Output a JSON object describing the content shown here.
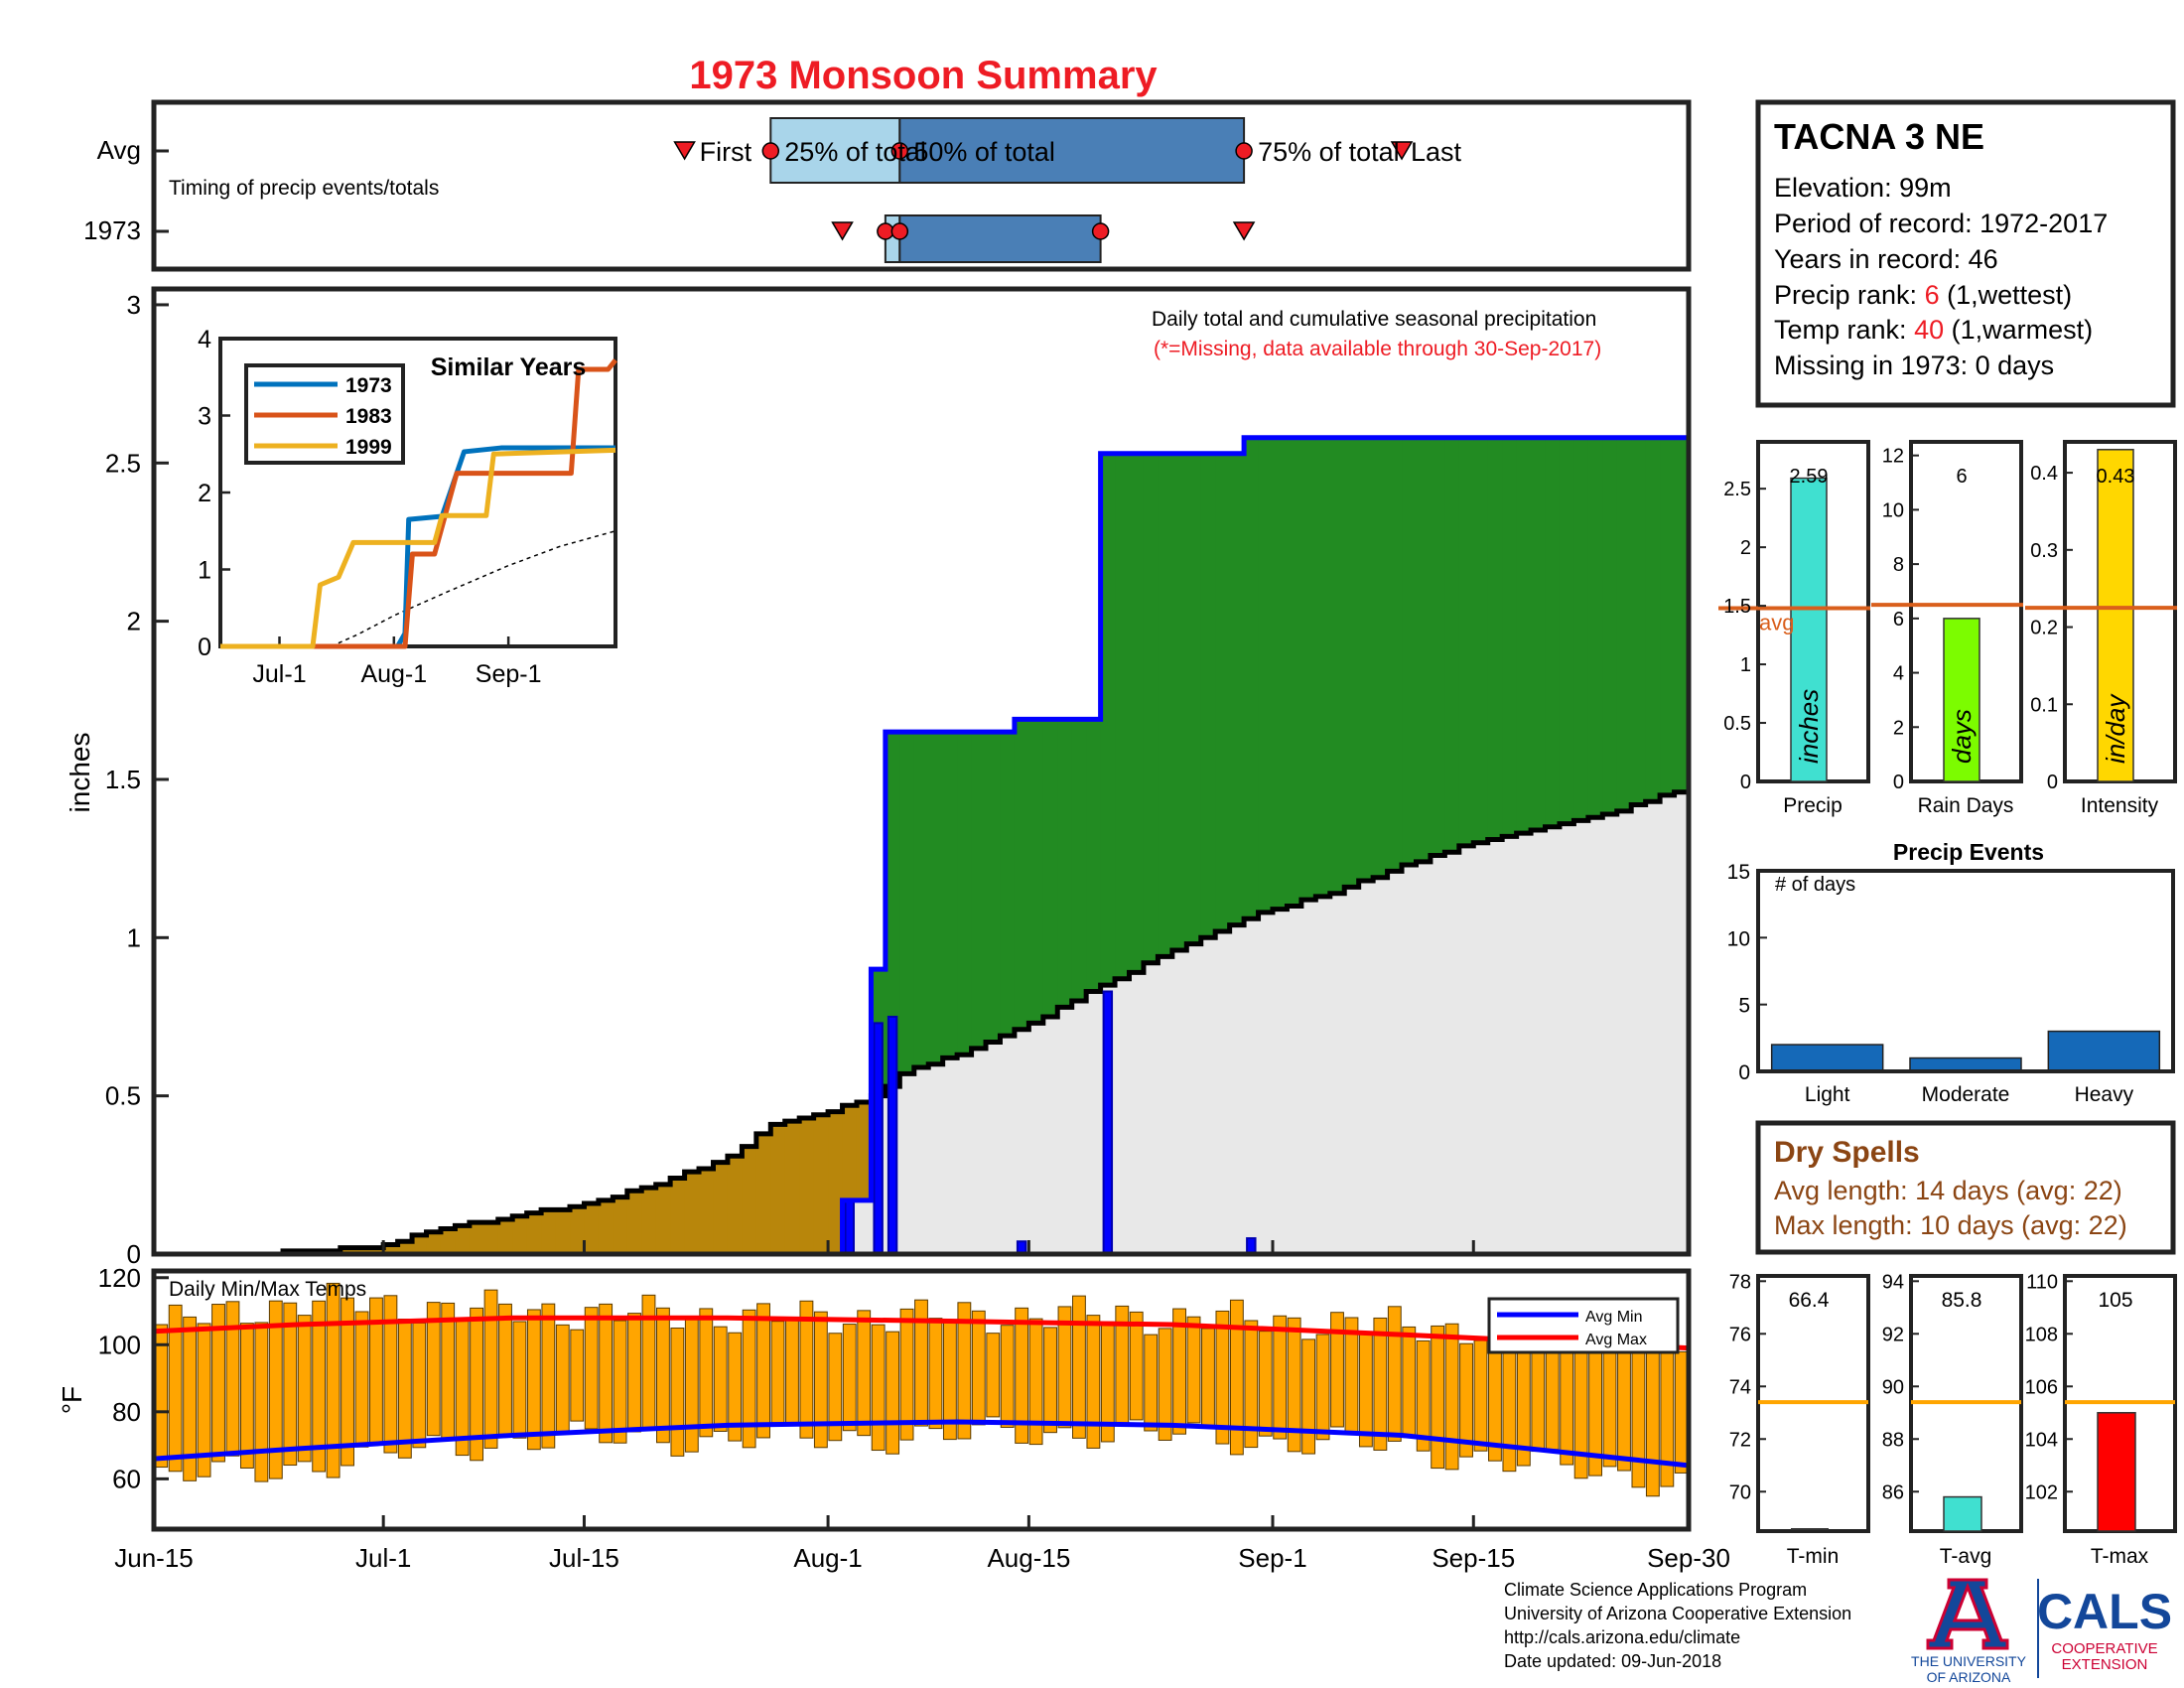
{
  "title": "1973 Monsoon Summary",
  "colors": {
    "title_red": "#ee1c24",
    "light_blue": "#a9d5ea",
    "mid_blue": "#4a7fb6",
    "precip_blue": "#0000ff",
    "green": "#228b22",
    "brown": "#b8860b",
    "light_gray": "#e8e8e8",
    "orange": "#ffa500",
    "avg_orange": "#d95f1c",
    "rank_red": "#ee1c24",
    "dry_spell_brown": "#8b4513",
    "turquoise": "#40e0d0",
    "lime": "#7cfc00",
    "gold": "#ffd700",
    "heavy_blue": "#1569b8",
    "cals_blue": "#13479a",
    "ua_red": "#cc0033"
  },
  "timing": {
    "row_labels": [
      "Avg",
      "1973"
    ],
    "caption": "Timing of precip events/totals",
    "avg_labels": {
      "first": "First",
      "p25": "25% of total",
      "p50": "50% of total",
      "p75": "75% of total",
      "last": "Last"
    },
    "avg": {
      "first": "2017-07-22",
      "p25": "2017-07-28",
      "p50": "2017-08-06",
      "p75": "2017-08-30",
      "last": "2017-09-10"
    },
    "year": {
      "first": "2017-08-02",
      "p25": "2017-08-05",
      "p50": "2017-08-06",
      "p75": "2017-08-20",
      "last": "2017-08-30"
    }
  },
  "main_chart": {
    "ylabel": "inches",
    "note": "Daily total and cumulative seasonal precipitation",
    "missing_note": "(*=Missing, data available through 30-Sep-2017)",
    "ylim": [
      0,
      3.05
    ],
    "yticks": [
      "0",
      "0.5",
      "1",
      "1.5",
      "2",
      "2.5",
      "3"
    ],
    "xticks": [
      "Jun-15",
      "Jul-1",
      "Jul-15",
      "Aug-1",
      "Aug-15",
      "Sep-1",
      "Sep-15",
      "Sep-30"
    ],
    "cumulative_year": [
      [
        "2017-06-15",
        0
      ],
      [
        "2017-08-02",
        0.17
      ],
      [
        "2017-08-04",
        0.9
      ],
      [
        "2017-08-05",
        1.65
      ],
      [
        "2017-08-14",
        1.69
      ],
      [
        "2017-08-20",
        2.53
      ],
      [
        "2017-08-30",
        2.58
      ],
      [
        "2017-09-30",
        2.58
      ]
    ],
    "cumulative_avg": [
      [
        "2017-06-15",
        0
      ],
      [
        "2017-06-22",
        0
      ],
      [
        "2017-06-25",
        0.01
      ],
      [
        "2017-06-30",
        0.02
      ],
      [
        "2017-07-05",
        0.08
      ],
      [
        "2017-07-10",
        0.12
      ],
      [
        "2017-07-15",
        0.16
      ],
      [
        "2017-07-20",
        0.22
      ],
      [
        "2017-07-25",
        0.31
      ],
      [
        "2017-07-28",
        0.41
      ],
      [
        "2017-08-01",
        0.45
      ],
      [
        "2017-08-04",
        0.5
      ],
      [
        "2017-08-06",
        0.57
      ],
      [
        "2017-08-10",
        0.63
      ],
      [
        "2017-08-15",
        0.73
      ],
      [
        "2017-08-20",
        0.85
      ],
      [
        "2017-08-25",
        0.96
      ],
      [
        "2017-08-31",
        1.08
      ],
      [
        "2017-09-05",
        1.14
      ],
      [
        "2017-09-10",
        1.23
      ],
      [
        "2017-09-15",
        1.3
      ],
      [
        "2017-09-20",
        1.35
      ],
      [
        "2017-09-25",
        1.4
      ],
      [
        "2017-09-30",
        1.48
      ]
    ],
    "daily_precip": [
      [
        "2017-08-02",
        0.17
      ],
      [
        "2017-08-04",
        0.73
      ],
      [
        "2017-08-05",
        0.75
      ],
      [
        "2017-08-14",
        0.04
      ],
      [
        "2017-08-20",
        0.83
      ],
      [
        "2017-08-30",
        0.05
      ]
    ]
  },
  "similar_years": {
    "title": "Similar Years",
    "ylim": [
      0,
      4
    ],
    "yticks": [
      "0",
      "1",
      "2",
      "3",
      "4"
    ],
    "xticks": [
      "Jul-1",
      "Aug-1",
      "Sep-1"
    ],
    "series": [
      {
        "name": "1973",
        "color": "#0072bd",
        "points": [
          [
            "2017-06-15",
            0
          ],
          [
            "2017-08-02",
            0
          ],
          [
            "2017-08-04",
            0.17
          ],
          [
            "2017-08-05",
            1.65
          ],
          [
            "2017-08-14",
            1.69
          ],
          [
            "2017-08-20",
            2.53
          ],
          [
            "2017-08-30",
            2.58
          ],
          [
            "2017-09-30",
            2.58
          ]
        ]
      },
      {
        "name": "1983",
        "color": "#d95319",
        "points": [
          [
            "2017-06-15",
            0
          ],
          [
            "2017-08-04",
            0
          ],
          [
            "2017-08-06",
            1.2
          ],
          [
            "2017-08-12",
            1.2
          ],
          [
            "2017-08-18",
            2.25
          ],
          [
            "2017-09-18",
            2.25
          ],
          [
            "2017-09-20",
            3.6
          ],
          [
            "2017-09-28",
            3.6
          ],
          [
            "2017-09-30",
            3.72
          ]
        ]
      },
      {
        "name": "1999",
        "color": "#edb120",
        "points": [
          [
            "2017-06-15",
            0
          ],
          [
            "2017-07-10",
            0
          ],
          [
            "2017-07-12",
            0.8
          ],
          [
            "2017-07-17",
            0.9
          ],
          [
            "2017-07-21",
            1.35
          ],
          [
            "2017-08-12",
            1.35
          ],
          [
            "2017-08-14",
            1.7
          ],
          [
            "2017-08-26",
            1.7
          ],
          [
            "2017-08-28",
            2.5
          ],
          [
            "2017-09-30",
            2.55
          ]
        ]
      }
    ],
    "avg_line": [
      [
        "2017-07-15",
        0
      ],
      [
        "2017-07-22",
        0.15
      ],
      [
        "2017-08-01",
        0.4
      ],
      [
        "2017-08-15",
        0.7
      ],
      [
        "2017-09-01",
        1.05
      ],
      [
        "2017-09-15",
        1.3
      ],
      [
        "2017-09-30",
        1.5
      ]
    ]
  },
  "temps": {
    "label": "Daily Min/Max Temps",
    "ylabel": "°F",
    "ylim": [
      45,
      122
    ],
    "yticks": [
      "60",
      "80",
      "100",
      "120"
    ],
    "legend": {
      "min": "Avg Min",
      "max": "Avg Max"
    },
    "avg_max": [
      [
        "2017-06-15",
        104
      ],
      [
        "2017-06-25",
        106
      ],
      [
        "2017-07-10",
        108
      ],
      [
        "2017-07-25",
        108
      ],
      [
        "2017-08-10",
        107
      ],
      [
        "2017-08-25",
        106
      ],
      [
        "2017-09-10",
        103
      ],
      [
        "2017-09-30",
        99
      ]
    ],
    "avg_min": [
      [
        "2017-06-15",
        66
      ],
      [
        "2017-06-25",
        69
      ],
      [
        "2017-07-10",
        73
      ],
      [
        "2017-07-25",
        76
      ],
      [
        "2017-08-10",
        77
      ],
      [
        "2017-08-25",
        76
      ],
      [
        "2017-09-10",
        73
      ],
      [
        "2017-09-30",
        64
      ]
    ],
    "hi_anchor": [
      [
        0,
        106
      ],
      [
        10,
        113
      ],
      [
        25,
        110
      ],
      [
        45,
        108
      ],
      [
        65,
        109
      ],
      [
        85,
        106
      ],
      [
        100,
        103
      ],
      [
        107,
        99
      ]
    ],
    "lo_anchor": [
      [
        0,
        60
      ],
      [
        10,
        64
      ],
      [
        25,
        72
      ],
      [
        45,
        72
      ],
      [
        65,
        74
      ],
      [
        85,
        70
      ],
      [
        100,
        62
      ],
      [
        107,
        59
      ]
    ]
  },
  "station": {
    "name": "TACNA 3 NE",
    "elevation": "Elevation: 99m",
    "period": "Period of record: 1972-2017",
    "years": "Years in record: 46",
    "precip_rank_label": "Precip rank: ",
    "precip_rank": "6",
    "precip_rank_suffix": " (1,wettest)",
    "temp_rank_label": "Temp rank: ",
    "temp_rank": "40",
    "temp_rank_suffix": " (1,warmest)",
    "missing": "Missing in 1973: 0 days"
  },
  "mini_bars": [
    {
      "label": "Precip",
      "unit": "inches",
      "value": 2.59,
      "value_text": "2.59",
      "avg": 1.48,
      "avg_label": "avg",
      "ylim": [
        0,
        2.9
      ],
      "yticks": [
        0,
        0.5,
        1,
        1.5,
        2,
        2.5
      ],
      "color": "#40e0d0"
    },
    {
      "label": "Rain Days",
      "unit": "days",
      "value": 6,
      "value_text": "6",
      "avg": 6.5,
      "avg_label": "",
      "ylim": [
        0,
        12.5
      ],
      "yticks": [
        0,
        2,
        4,
        6,
        8,
        10,
        12
      ],
      "color": "#7cfc00"
    },
    {
      "label": "Intensity",
      "unit": "in/day",
      "value": 0.43,
      "value_text": "0.43",
      "avg": 0.225,
      "avg_label": "",
      "ylim": [
        0,
        0.44
      ],
      "yticks": [
        0,
        0.1,
        0.2,
        0.3,
        0.4
      ],
      "color": "#ffd700"
    }
  ],
  "precip_events": {
    "title": "Precip Events",
    "ylabel": "# of days",
    "ylim": [
      0,
      15
    ],
    "yticks": [
      0,
      5,
      10,
      15
    ],
    "categories": [
      "Light",
      "Moderate",
      "Heavy"
    ],
    "values": [
      2,
      1,
      3
    ]
  },
  "dry_spells": {
    "title": "Dry Spells",
    "avg_length": "Avg length: 14 days (avg: 22)",
    "max_length": "Max length: 10 days (avg: 22)"
  },
  "temp_bars": [
    {
      "label": "T-min",
      "value": 66.4,
      "value_text": "66.4",
      "avg": 73.4,
      "ylim": [
        68.5,
        78.2
      ],
      "yticks": [
        70,
        72,
        74,
        76,
        78
      ],
      "color": "#ffffff"
    },
    {
      "label": "T-avg",
      "value": 85.8,
      "value_text": "85.8",
      "avg": 89.4,
      "ylim": [
        84.5,
        94.2
      ],
      "yticks": [
        86,
        88,
        90,
        92,
        94
      ],
      "color": "#40e0d0"
    },
    {
      "label": "T-max",
      "value": 105,
      "value_text": "105",
      "avg": 105.4,
      "ylim": [
        100.5,
        110.2
      ],
      "yticks": [
        102,
        104,
        106,
        108,
        110
      ],
      "color": "#ff0000"
    }
  ],
  "footer": {
    "lines": [
      "Climate Science Applications Program",
      "University of Arizona Cooperative Extension",
      "http://cals.arizona.edu/climate",
      " Date updated: 09-Jun-2018"
    ],
    "ua_line1": "THE UNIVERSITY",
    "ua_line2": "OF ARIZONA",
    "cals": "CALS",
    "coop1": "COOPERATIVE",
    "coop2": "EXTENSION"
  }
}
